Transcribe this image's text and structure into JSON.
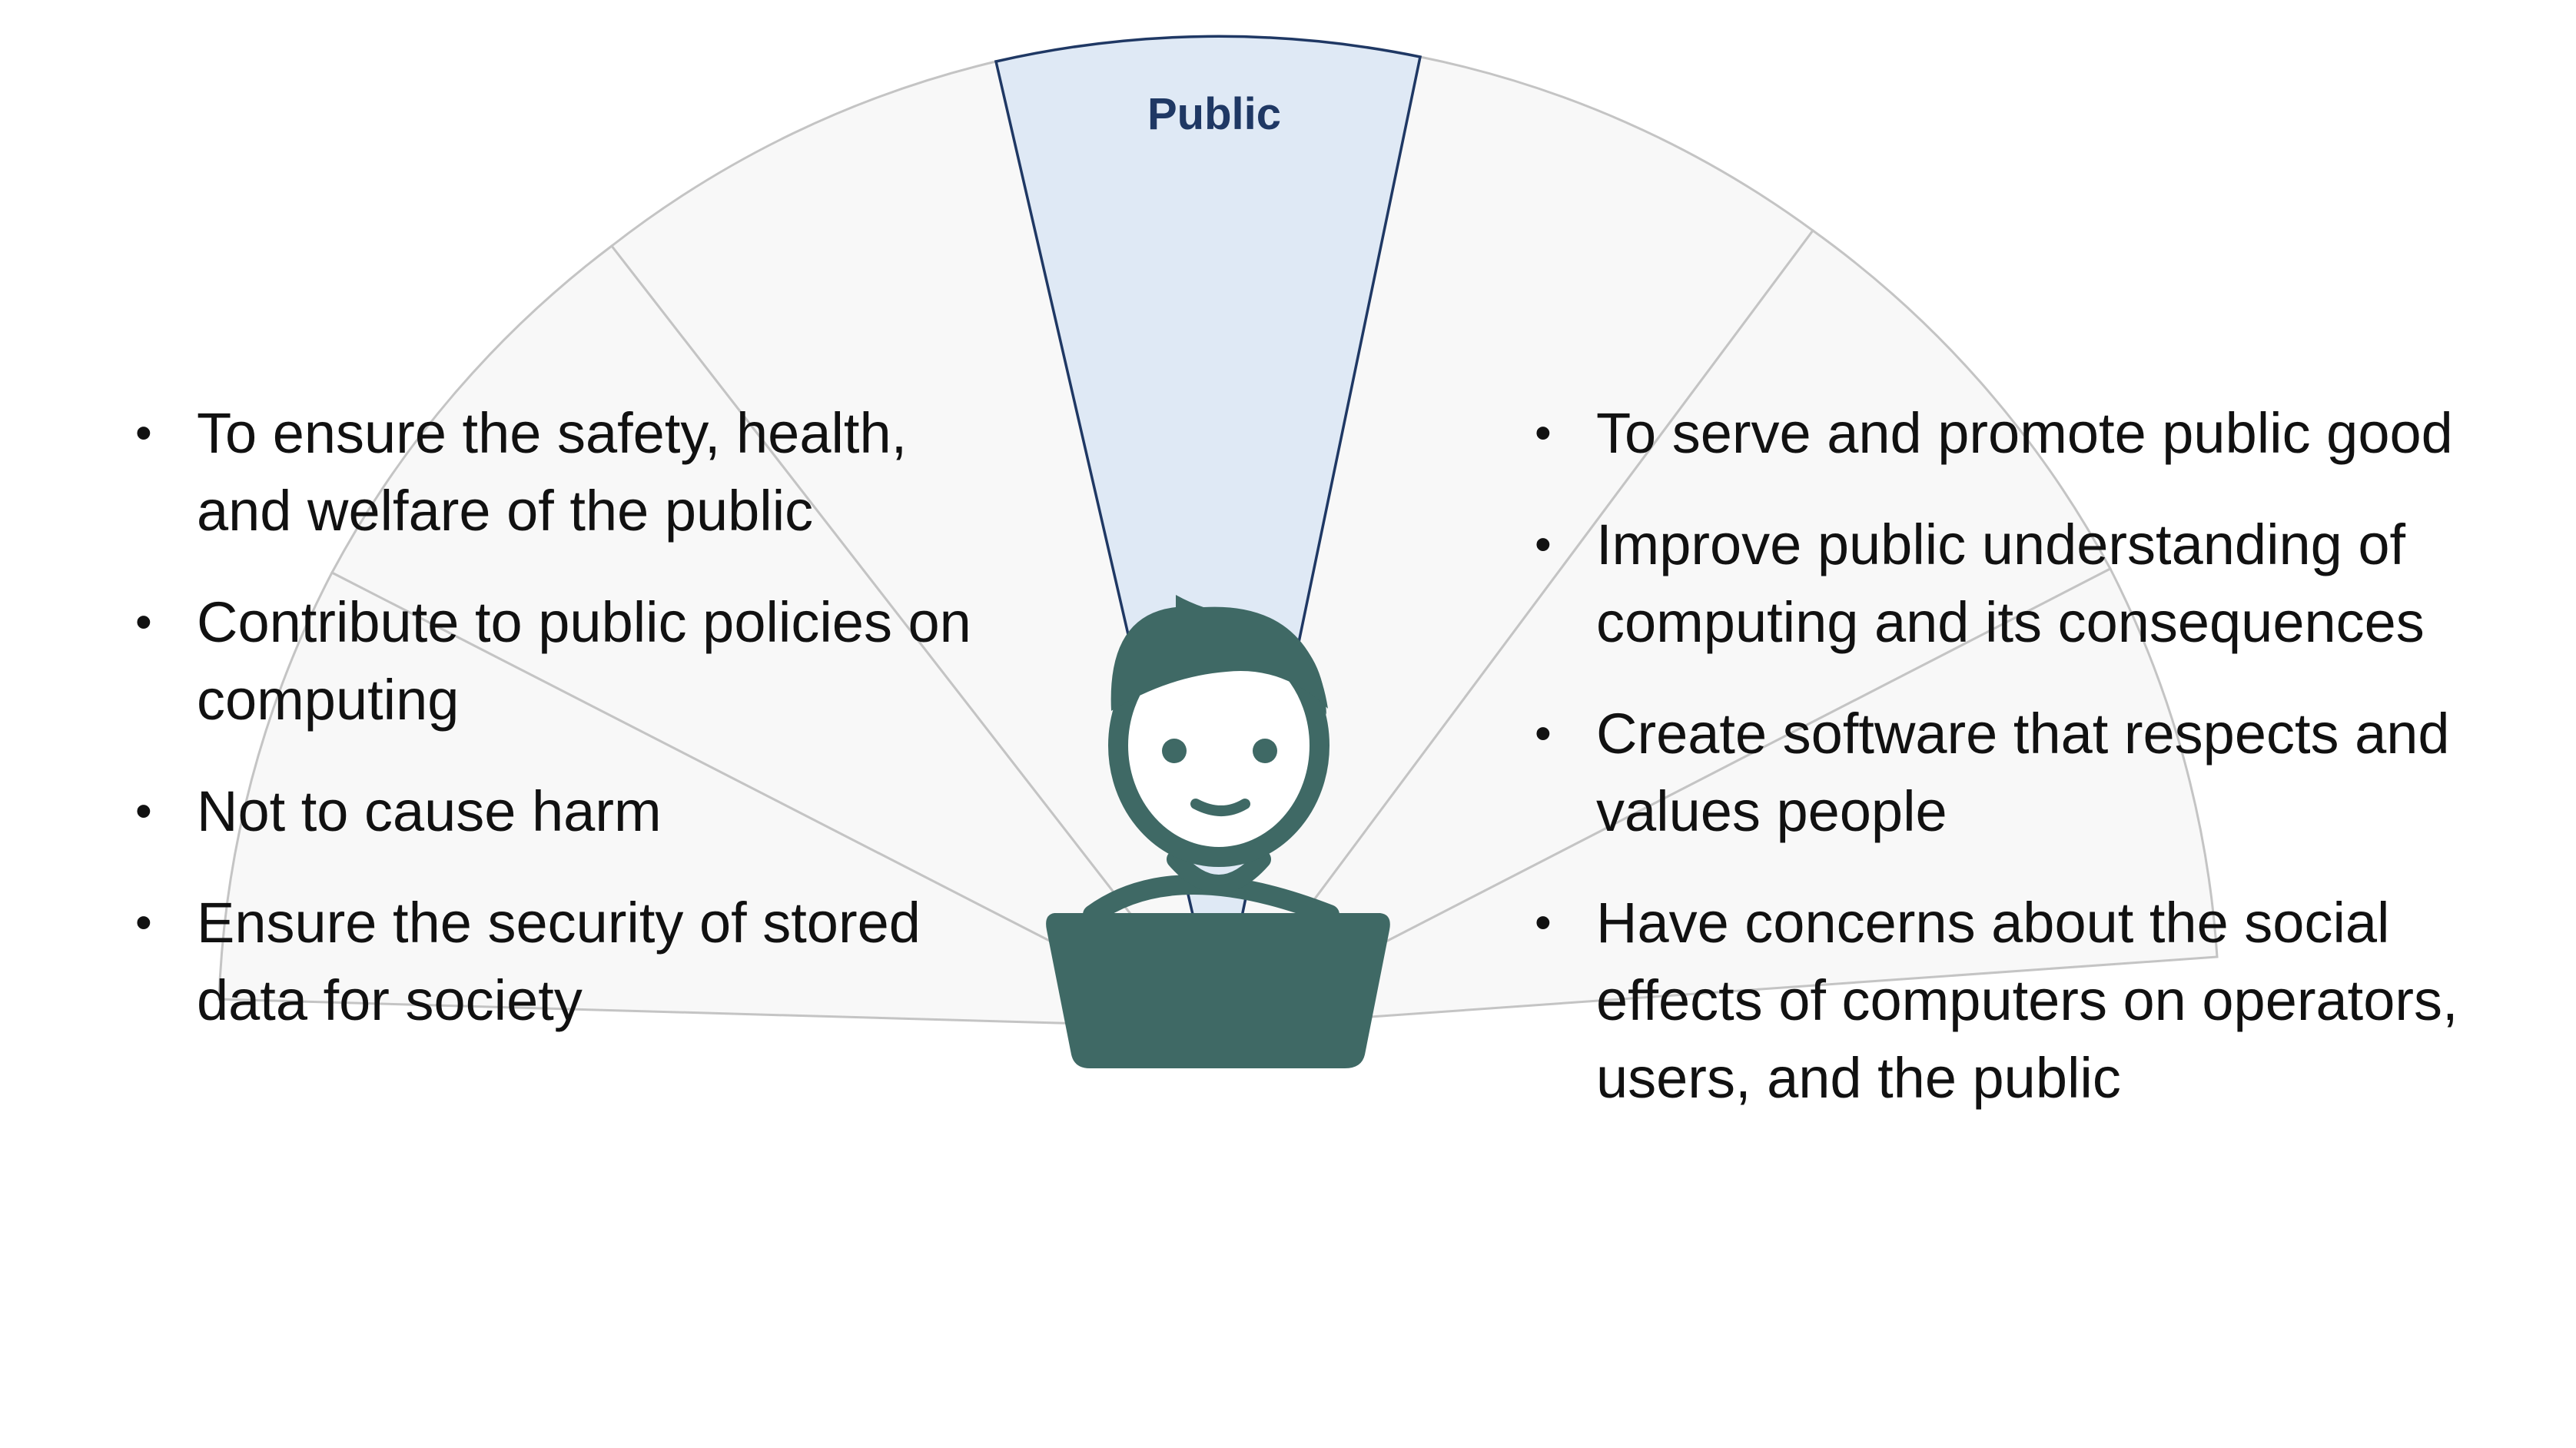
{
  "diagram": {
    "highlighted_segment_label": "Public",
    "center_figure_icon": "person-at-laptop-icon",
    "colors": {
      "highlight_fill": "#dfe9f5",
      "highlight_outline": "#1f3864",
      "segment_fill": "#f8f8f8",
      "segment_outline": "#c4c4c4",
      "figure": "#3f6965"
    }
  },
  "left_list": {
    "items": [
      "To ensure the safety, health, and welfare of the public",
      "Contribute to public policies on computing",
      "Not to cause harm",
      "Ensure the security of stored data for society"
    ]
  },
  "right_list": {
    "items": [
      "To serve and promote public good",
      "Improve public understanding of computing and its consequences",
      "Create software that respects and values people",
      "Have concerns about the social effects of computers on operators, users, and the public"
    ]
  }
}
